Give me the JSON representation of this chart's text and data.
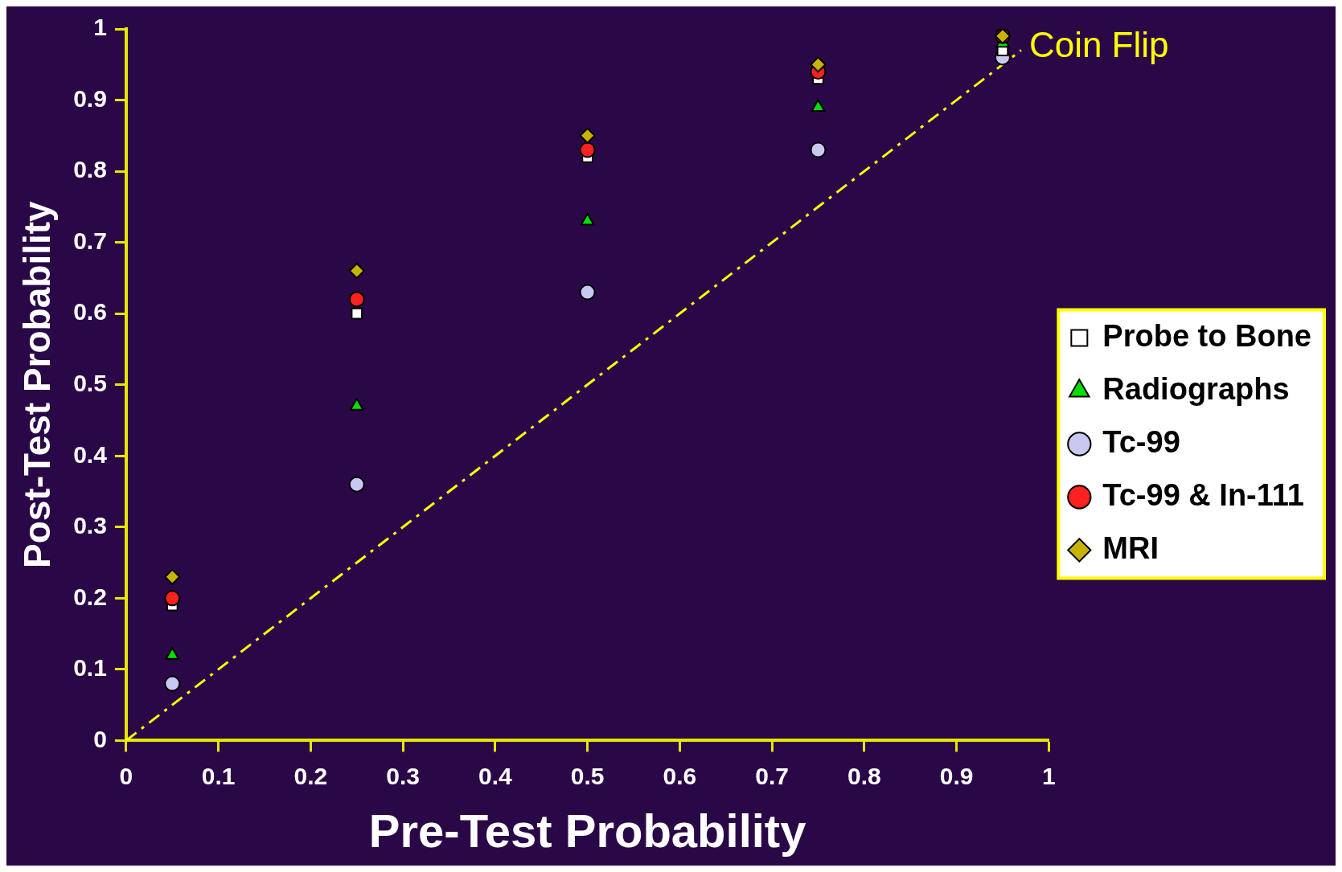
{
  "chart_data": {
    "type": "scatter",
    "xlabel": "Pre-Test Probability",
    "ylabel": "Post-Test Probability",
    "x": [
      0.05,
      0.25,
      0.5,
      0.75,
      0.95
    ],
    "series": [
      {
        "name": "Probe to Bone",
        "color": "#ffffff",
        "marker": "square",
        "values": [
          0.19,
          0.6,
          0.82,
          0.93,
          0.97
        ]
      },
      {
        "name": "Radiographs",
        "color": "#00e000",
        "marker": "triangle",
        "values": [
          0.12,
          0.47,
          0.73,
          0.89,
          0.98
        ]
      },
      {
        "name": "Tc-99",
        "color": "#c8c8f0",
        "marker": "circle",
        "values": [
          0.08,
          0.36,
          0.63,
          0.83,
          0.96
        ]
      },
      {
        "name": "Tc-99 & In-111",
        "color": "#ff2020",
        "marker": "circle",
        "values": [
          0.2,
          0.62,
          0.83,
          0.94,
          0.99
        ]
      },
      {
        "name": "MRI",
        "color": "#c8b400",
        "marker": "diamond",
        "values": [
          0.23,
          0.66,
          0.85,
          0.95,
          0.99
        ]
      },
      {
        "name": "Coin Flip",
        "type": "line",
        "color": "#ffff00",
        "line_style": "dashed",
        "marker": "none",
        "x": [
          0,
          0.97
        ],
        "values": [
          0,
          0.97
        ]
      }
    ],
    "xlim": [
      0,
      1
    ],
    "ylim": [
      0,
      1
    ],
    "xticks": [
      0,
      0.1,
      0.2,
      0.3,
      0.4,
      0.5,
      0.6,
      0.7,
      0.8,
      0.9,
      1
    ],
    "yticks": [
      0,
      0.1,
      0.2,
      0.3,
      0.4,
      0.5,
      0.6,
      0.7,
      0.8,
      0.9,
      1
    ],
    "grid": false,
    "legend": "right"
  }
}
